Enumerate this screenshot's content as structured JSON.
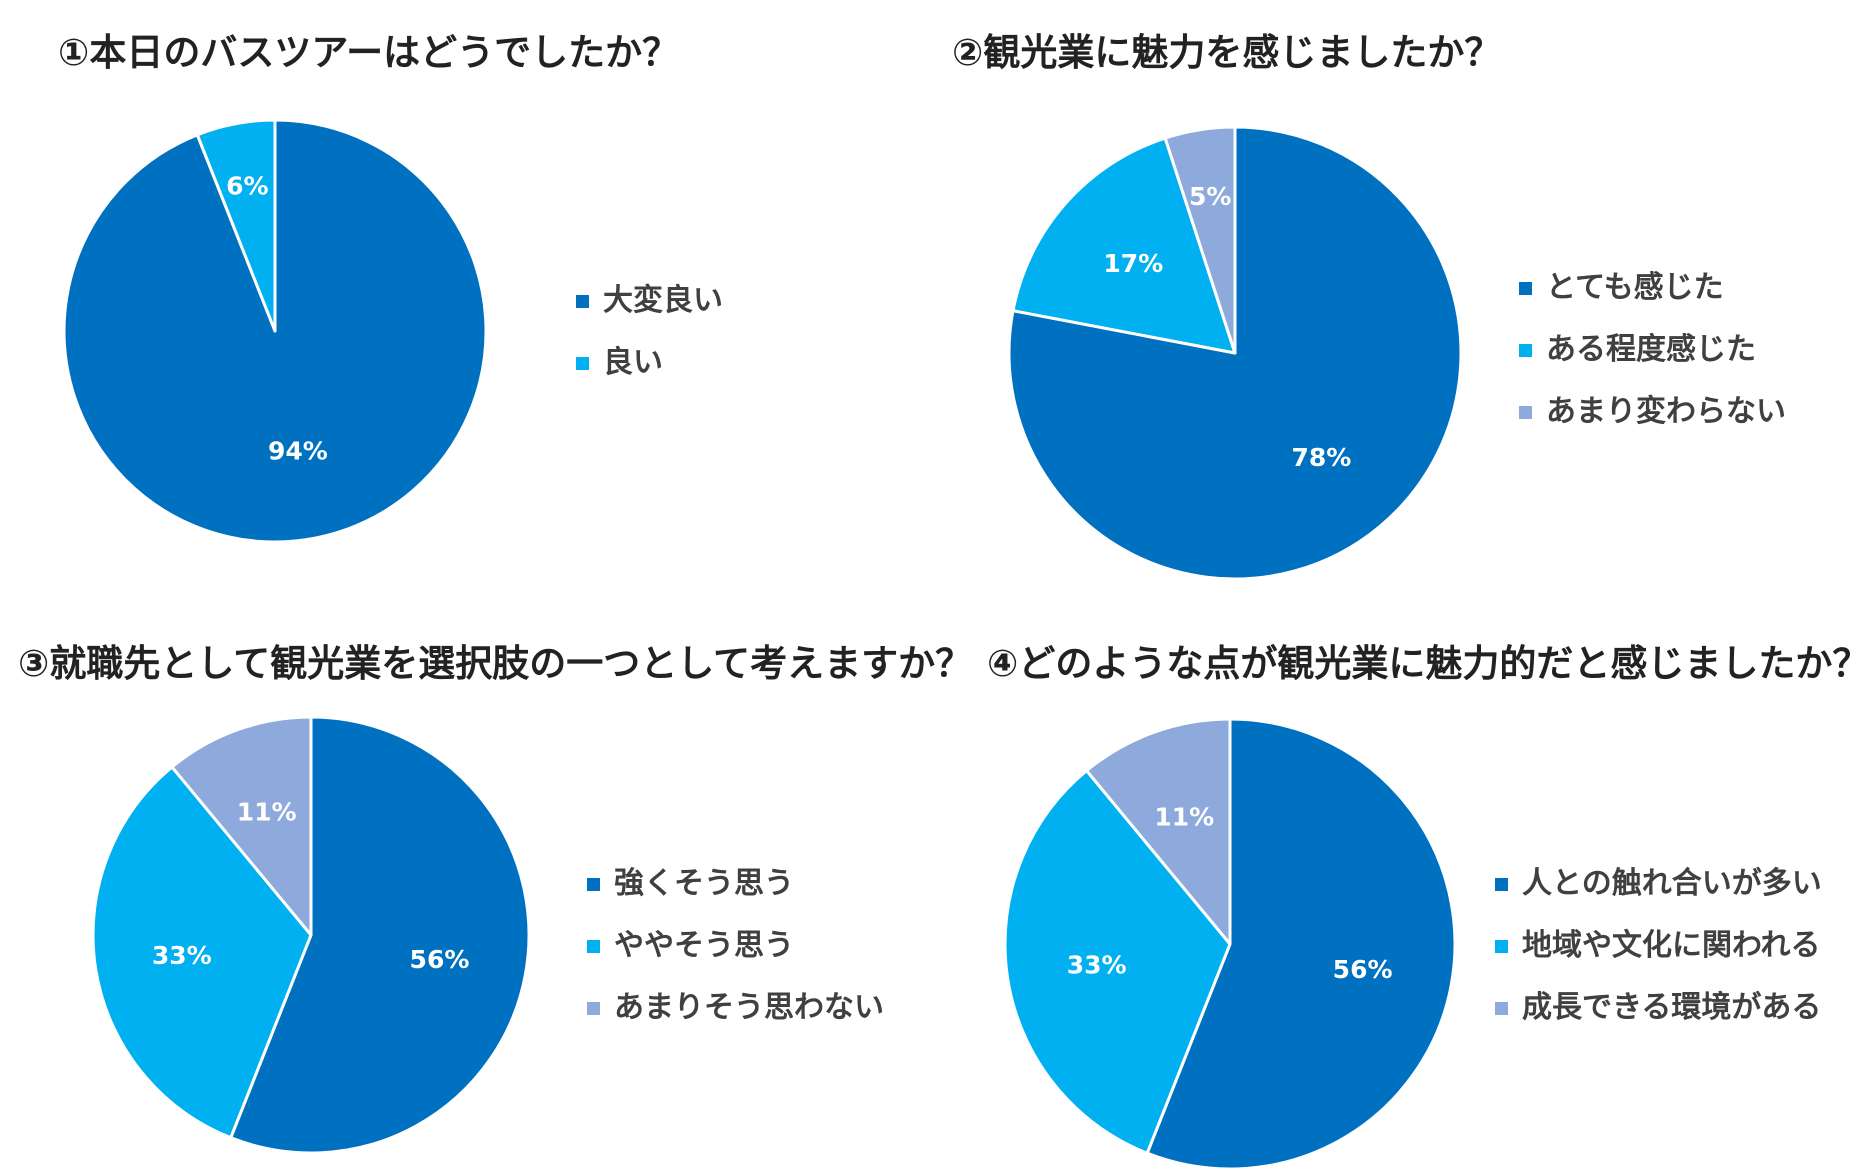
{
  "colors": {
    "dark_blue": "#0070C0",
    "cyan": "#00B0F0",
    "lavender": "#8EA9DB"
  },
  "chart_data": [
    {
      "type": "pie",
      "title": "①本日のバスツアーはどうでしたか？",
      "slices": [
        {
          "label": "大変良い",
          "value": 94,
          "display": "94%",
          "color": "#0070C0"
        },
        {
          "label": "良い",
          "value": 6,
          "display": "6%",
          "color": "#00B0F0"
        }
      ],
      "legend_position": "right"
    },
    {
      "type": "pie",
      "title": "②観光業に魅力を感じましたか？",
      "slices": [
        {
          "label": "とても感じた",
          "value": 78,
          "display": "78%",
          "color": "#0070C0"
        },
        {
          "label": "ある程度感じた",
          "value": 17,
          "display": "17%",
          "color": "#00B0F0"
        },
        {
          "label": "あまり変わらない",
          "value": 5,
          "display": "5%",
          "color": "#8EA9DB"
        }
      ],
      "legend_position": "right"
    },
    {
      "type": "pie",
      "title": "③就職先として観光業を選択肢の一つとして考えますか？",
      "slices": [
        {
          "label": "強くそう思う",
          "value": 56,
          "display": "56%",
          "color": "#0070C0"
        },
        {
          "label": "ややそう思う",
          "value": 33,
          "display": "33%",
          "color": "#00B0F0"
        },
        {
          "label": "あまりそう思わない",
          "value": 11,
          "display": "11%",
          "color": "#8EA9DB"
        }
      ],
      "legend_position": "right"
    },
    {
      "type": "pie",
      "title": "④どのような点が観光業に魅力的だと感じましたか？",
      "slices": [
        {
          "label": "人との触れ合いが多い",
          "value": 56,
          "display": "56%",
          "color": "#0070C0"
        },
        {
          "label": "地域や文化に関われる",
          "value": 33,
          "display": "33%",
          "color": "#00B0F0"
        },
        {
          "label": "成長できる環境がある",
          "value": 11,
          "display": "11%",
          "color": "#8EA9DB"
        }
      ],
      "legend_position": "right"
    }
  ]
}
